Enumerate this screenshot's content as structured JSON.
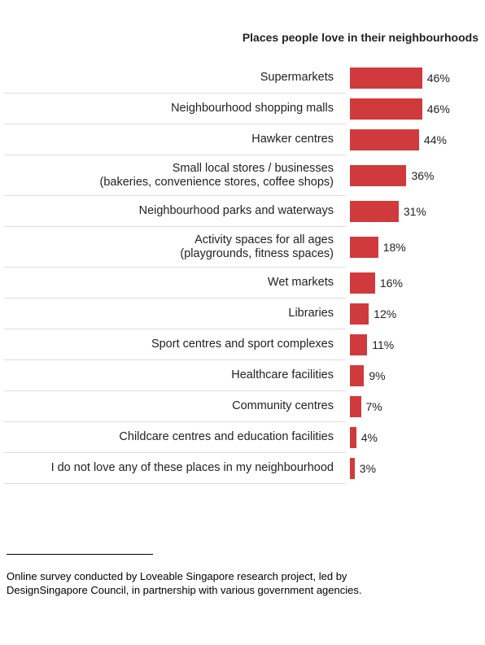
{
  "chart_data": {
    "type": "bar",
    "orientation": "horizontal",
    "title": "Places people love in their neighbourhoods",
    "categories": [
      "Supermarkets",
      "Neighbourhood shopping malls",
      "Hawker centres",
      "Small local stores / businesses\n(bakeries, convenience stores, coffee shops)",
      "Neighbourhood parks and waterways",
      "Activity spaces for all ages\n(playgrounds, fitness spaces)",
      "Wet markets",
      "Libraries",
      "Sport centres and sport complexes",
      "Healthcare facilities",
      "Community centres",
      "Childcare centres and education facilities",
      "I do not love any of these places in my neighbourhood"
    ],
    "values": [
      46,
      46,
      44,
      36,
      31,
      18,
      16,
      12,
      11,
      9,
      7,
      4,
      3
    ],
    "value_labels": [
      "46%",
      "46%",
      "44%",
      "36%",
      "31%",
      "18%",
      "16%",
      "12%",
      "11%",
      "9%",
      "7%",
      "4%",
      "3%"
    ],
    "color": "#d03a3c"
  },
  "footnote": "Online survey conducted by Loveable Singapore research project, led by DesignSingapore Council, in partnership with various government agencies."
}
